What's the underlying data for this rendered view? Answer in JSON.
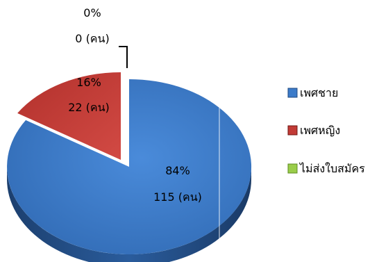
{
  "chart_data": {
    "type": "pie",
    "style": "3d-exploded",
    "slices": [
      {
        "label": "เพศชาย",
        "value": 115,
        "percent": "84%",
        "count_label": "115 (คน)",
        "color": "#3C7BC9"
      },
      {
        "label": "เพศหญิง",
        "value": 22,
        "percent": "16%",
        "count_label": "22 (คน)",
        "color": "#C23B36"
      },
      {
        "label": "ไม่ส่งใบสมัคร",
        "value": 0,
        "percent": "0%",
        "count_label": "0 (คน)",
        "color": "#9ACD4A"
      }
    ],
    "legend_position": "right"
  },
  "colors": {
    "blue": "#3C7BC9",
    "blue_dark": "#1F4A80",
    "red": "#C23B36",
    "red_dark": "#6E1512",
    "green": "#9ACD4A"
  }
}
